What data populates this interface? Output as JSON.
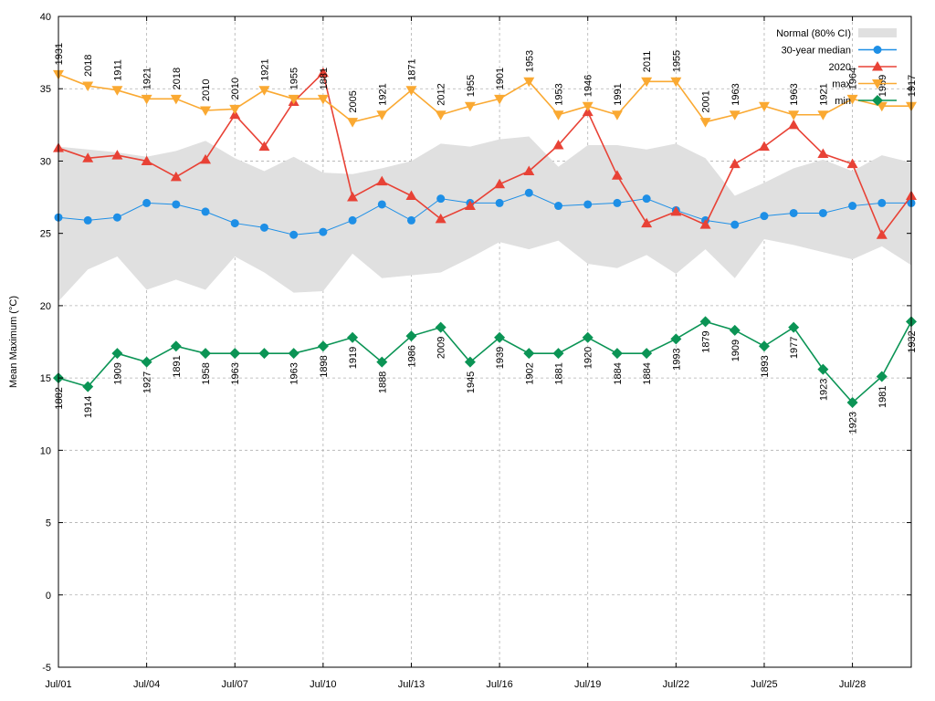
{
  "chart_data": {
    "type": "line",
    "ylabel": "Mean Maximum (°C)",
    "ylim": [
      -5,
      40
    ],
    "yticks": [
      "-5",
      "0",
      "5",
      "10",
      "15",
      "20",
      "25",
      "30",
      "35",
      "40"
    ],
    "xlim": [
      1,
      30
    ],
    "xticks": [
      {
        "day": 1,
        "label": "Jul/01"
      },
      {
        "day": 4,
        "label": "Jul/04"
      },
      {
        "day": 7,
        "label": "Jul/07"
      },
      {
        "day": 10,
        "label": "Jul/10"
      },
      {
        "day": 13,
        "label": "Jul/13"
      },
      {
        "day": 16,
        "label": "Jul/16"
      },
      {
        "day": 19,
        "label": "Jul/19"
      },
      {
        "day": 22,
        "label": "Jul/22"
      },
      {
        "day": 25,
        "label": "Jul/25"
      },
      {
        "day": 28,
        "label": "Jul/28"
      }
    ],
    "grid": true,
    "legend_position": "top-right",
    "x": [
      1,
      2,
      3,
      4,
      5,
      6,
      7,
      8,
      9,
      10,
      11,
      12,
      13,
      14,
      15,
      16,
      17,
      18,
      19,
      20,
      21,
      22,
      23,
      24,
      25,
      26,
      27,
      28,
      29,
      30
    ],
    "band": {
      "name": "Normal (80% CI)",
      "color": "#e0e0e0",
      "upper": [
        31.0,
        30.8,
        30.6,
        30.3,
        30.7,
        31.4,
        30.2,
        29.3,
        30.3,
        29.2,
        29.1,
        29.5,
        30.0,
        31.2,
        31.0,
        31.5,
        31.7,
        29.6,
        31.1,
        31.1,
        30.8,
        31.2,
        30.2,
        27.6,
        28.5,
        29.5,
        30.1,
        29.3,
        30.4,
        29.9
      ],
      "lower": [
        20.3,
        22.5,
        23.4,
        21.1,
        21.8,
        21.1,
        23.4,
        22.3,
        20.9,
        21.0,
        23.6,
        21.9,
        22.1,
        22.3,
        23.3,
        24.4,
        23.9,
        24.5,
        22.9,
        22.6,
        23.5,
        22.2,
        23.9,
        21.9,
        24.6,
        24.2,
        23.7,
        23.2,
        24.1,
        22.8
      ]
    },
    "series": [
      {
        "name": "30-year median",
        "color": "#1e8fe6",
        "marker": "circle",
        "values": [
          26.1,
          25.9,
          26.1,
          27.1,
          27.0,
          26.5,
          25.7,
          25.4,
          24.9,
          25.1,
          25.9,
          27.0,
          25.9,
          27.4,
          27.1,
          27.1,
          27.8,
          26.9,
          27.0,
          27.1,
          27.4,
          26.6,
          25.9,
          25.6,
          26.2,
          26.4,
          26.4,
          26.9,
          27.1,
          27.1
        ]
      },
      {
        "name": "2020",
        "color": "#e84236",
        "marker": "triangle-up",
        "values": [
          30.9,
          30.2,
          30.4,
          30.0,
          28.9,
          30.1,
          33.2,
          31.0,
          34.1,
          36.1,
          27.5,
          28.6,
          27.6,
          26.0,
          26.9,
          28.4,
          29.3,
          31.1,
          33.4,
          29.0,
          25.7,
          26.5,
          25.6,
          29.8,
          31.0,
          32.5,
          30.5,
          29.8,
          24.9,
          27.6
        ]
      },
      {
        "name": "max",
        "color": "#faa932",
        "marker": "triangle-down",
        "values": [
          36.0,
          35.2,
          34.9,
          34.3,
          34.3,
          33.5,
          33.6,
          34.9,
          34.3,
          34.3,
          32.7,
          33.2,
          34.9,
          33.2,
          33.8,
          34.3,
          35.5,
          33.2,
          33.8,
          33.2,
          35.5,
          35.5,
          32.7,
          33.2,
          33.8,
          33.2,
          33.2,
          34.3,
          33.8,
          33.8
        ],
        "years": [
          "1931",
          "2018",
          "1911",
          "1921",
          "2018",
          "2010",
          "2010",
          "1921",
          "1955",
          "1881",
          "2005",
          "1921",
          "1871",
          "2012",
          "1955",
          "1901",
          "1953",
          "1953",
          "1946",
          "1991",
          "2011",
          "1955",
          "2001",
          "1963",
          "",
          "1963",
          "1921",
          "1964",
          "1959",
          "1917"
        ]
      },
      {
        "name": "min",
        "color": "#0b9455",
        "marker": "diamond",
        "values": [
          15.0,
          14.4,
          16.7,
          16.1,
          17.2,
          16.7,
          16.7,
          16.7,
          16.7,
          17.2,
          17.8,
          16.1,
          17.9,
          18.5,
          16.1,
          17.8,
          16.7,
          16.7,
          17.8,
          16.7,
          16.7,
          17.7,
          18.9,
          18.3,
          17.2,
          18.5,
          15.6,
          13.3,
          15.1,
          18.9
        ],
        "years": [
          "1882",
          "1914",
          "1909",
          "1927",
          "1891",
          "1958",
          "1963",
          "",
          "1963",
          "1898",
          "1919",
          "1888",
          "1986",
          "2009",
          "1945",
          "1939",
          "1902",
          "1881",
          "1920",
          "1884",
          "1884",
          "1993",
          "1879",
          "1909",
          "1893",
          "1977",
          "1923",
          "1923",
          "1981",
          "1932"
        ]
      }
    ]
  }
}
